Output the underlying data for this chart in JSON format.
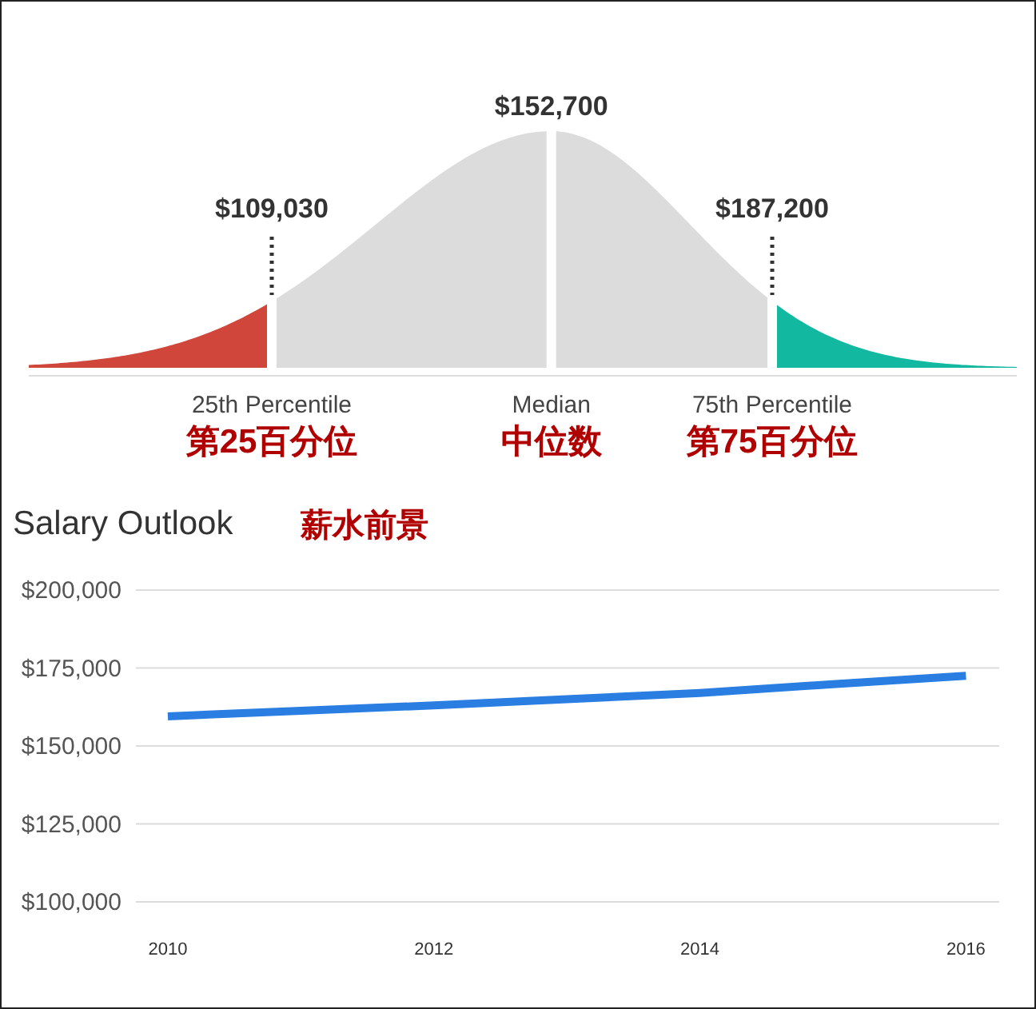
{
  "chart_data": [
    {
      "type": "other",
      "categories": [
        "25th Percentile",
        "Median",
        "75th Percentile"
      ],
      "values": [
        109030,
        152700,
        187200
      ],
      "value_labels": [
        "$109,030",
        "$152,700",
        "$187,200"
      ],
      "colors": [
        "#d0463b",
        "#dcdcdc",
        "#12b89f"
      ],
      "annotations": [
        "第25百分位",
        "中位数",
        "第75百分位"
      ]
    },
    {
      "type": "line",
      "title": "Salary Outlook",
      "subtitle": "薪水前景",
      "x": [
        2010,
        2011,
        2012,
        2013,
        2014,
        2015,
        2016
      ],
      "series": [
        {
          "color": "#2a7de1",
          "values": [
            159500,
            161300,
            163000,
            165000,
            167000,
            169800,
            172500
          ]
        }
      ],
      "xlim": [
        2009.76,
        2016.25
      ],
      "xticks": [
        2010,
        2012,
        2014,
        2016
      ],
      "ylim": [
        100000,
        200000
      ],
      "yticks": [
        {
          "value": 100000,
          "label": "$100,000"
        },
        {
          "value": 125000,
          "label": "$125,000"
        },
        {
          "value": 150000,
          "label": "$150,000"
        },
        {
          "value": 175000,
          "label": "$175,000"
        },
        {
          "value": 200000,
          "label": "$200,000"
        }
      ],
      "grid": "y",
      "marker": "none"
    }
  ]
}
